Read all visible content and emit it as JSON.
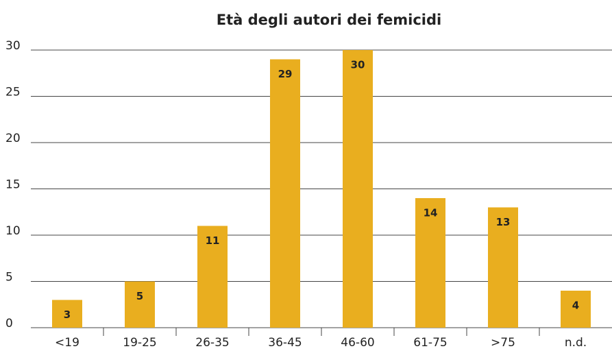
{
  "chart_data": {
    "type": "bar",
    "title": "Età degli autori dei femicidi",
    "categories": [
      "<19",
      "19-25",
      "26-35",
      "36-45",
      "46-60",
      "61-75",
      ">75",
      "n.d."
    ],
    "values": [
      3,
      5,
      11,
      29,
      30,
      14,
      13,
      4
    ],
    "color": "#e9ae1f",
    "ylim": [
      0,
      30
    ],
    "yticks": [
      0,
      5,
      10,
      15,
      20,
      25,
      30
    ],
    "grid": true
  }
}
